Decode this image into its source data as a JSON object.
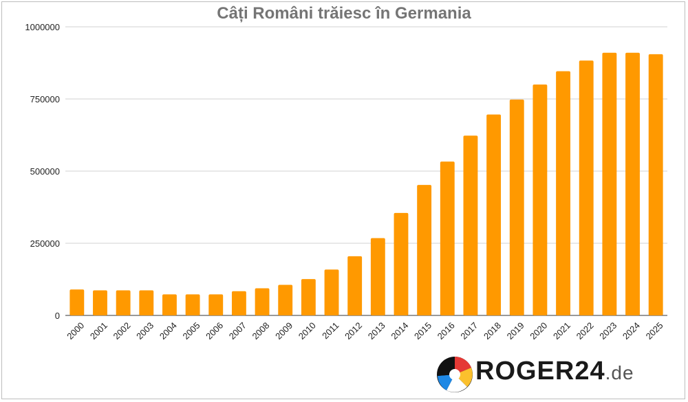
{
  "chart_data": {
    "type": "bar",
    "title": "Câți Români trăiesc în Germania",
    "categories": [
      "2000",
      "2001",
      "2002",
      "2003",
      "2004",
      "2005",
      "2006",
      "2007",
      "2008",
      "2009",
      "2010",
      "2011",
      "2012",
      "2013",
      "2014",
      "2015",
      "2016",
      "2017",
      "2018",
      "2019",
      "2020",
      "2021",
      "2022",
      "2023",
      "2024",
      "2025"
    ],
    "values": [
      90000,
      87000,
      87000,
      87000,
      73000,
      73000,
      73000,
      84000,
      94000,
      106000,
      126000,
      159000,
      205000,
      268000,
      355000,
      452000,
      533000,
      623000,
      696000,
      748000,
      800000,
      846000,
      883000,
      910000,
      910000,
      905000
    ],
    "ylim": [
      0,
      1000000
    ],
    "yticks": [
      "0",
      "250000",
      "500000",
      "750000",
      "1000000"
    ],
    "ytick_values": [
      0,
      250000,
      500000,
      750000,
      1000000
    ],
    "grid": true,
    "bar_color": "#ff9900"
  },
  "logo": {
    "text_main": "ROGER24",
    "text_domain": ".de"
  }
}
